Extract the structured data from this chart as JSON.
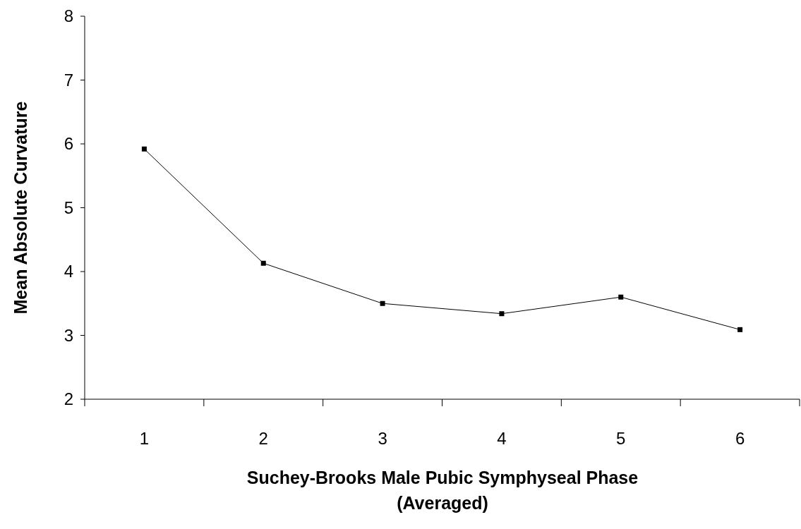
{
  "chart_data": {
    "type": "line",
    "xlabel": "Suchey-Brooks Male Pubic Symphyseal Phase\n(Averaged)",
    "ylabel": "Mean Absolute Curvature",
    "categories": [
      "1",
      "2",
      "3",
      "4",
      "5",
      "6"
    ],
    "series": [
      {
        "color": "#000000",
        "values": [
          5.92,
          4.13,
          3.5,
          3.34,
          3.6,
          3.09
        ]
      }
    ],
    "ylim": [
      2,
      8
    ],
    "yticks": [
      2,
      3,
      4,
      5,
      6,
      7,
      8
    ],
    "marker": "square",
    "line_style": "solid"
  }
}
